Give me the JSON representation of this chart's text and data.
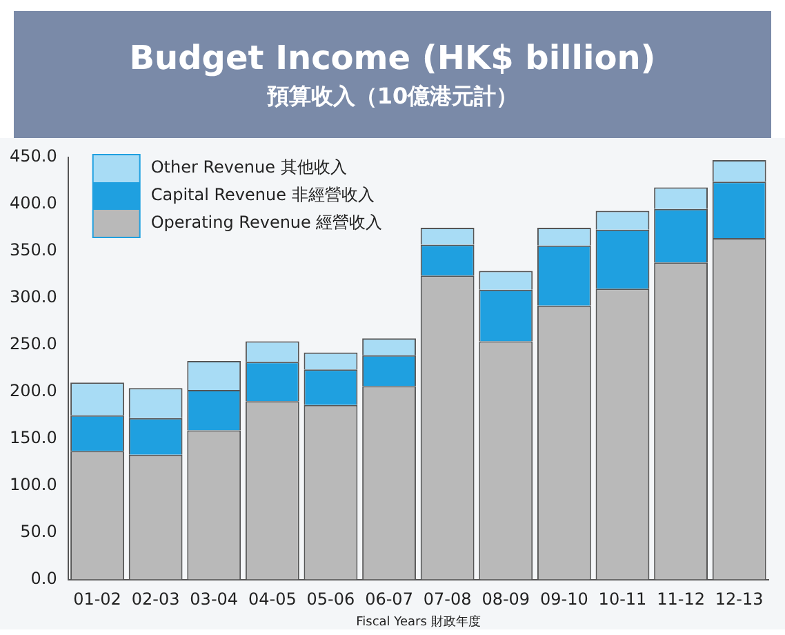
{
  "chart_data": {
    "type": "bar",
    "title": "Budget Income (HK$ billion)",
    "subtitle": "預算收入（10億港元計）",
    "xlabel": "Fiscal Years 財政年度",
    "categories": [
      "01-02",
      "02-03",
      "03-04",
      "04-05",
      "05-06",
      "06-07",
      "07-08",
      "08-09",
      "09-10",
      "10-11",
      "11-12",
      "12-13"
    ],
    "stacked": true,
    "series": [
      {
        "name": "Operating Revenue 經營收入",
        "color": "#b9b9b9",
        "values": [
          137,
          133,
          159,
          190,
          186,
          206,
          324,
          254,
          292,
          310,
          338,
          364
        ]
      },
      {
        "name": "Capital Revenue 非經營收入",
        "color": "#1fa0e0",
        "values": [
          38,
          39,
          43,
          42,
          38,
          33,
          33,
          55,
          64,
          63,
          57,
          60
        ]
      },
      {
        "name": "Other Revenue 其他收入",
        "color": "#a8dcf5",
        "values": [
          35,
          32,
          31,
          22,
          18,
          18,
          18,
          20,
          19,
          20,
          23,
          23
        ]
      }
    ],
    "ylim": [
      0,
      450
    ],
    "yticks": [
      {
        "value": 0,
        "label": "0.0"
      },
      {
        "value": 50,
        "label": "50.0"
      },
      {
        "value": 100,
        "label": "100.0"
      },
      {
        "value": 150,
        "label": "150.0"
      },
      {
        "value": 200,
        "label": "200.0"
      },
      {
        "value": 250,
        "label": "250.0"
      },
      {
        "value": 300,
        "label": "300.0"
      },
      {
        "value": 350,
        "label": "350.0"
      },
      {
        "value": 400,
        "label": "400.0"
      },
      {
        "value": 450,
        "label": "450.0"
      }
    ],
    "grid": false,
    "legend": "top left"
  }
}
